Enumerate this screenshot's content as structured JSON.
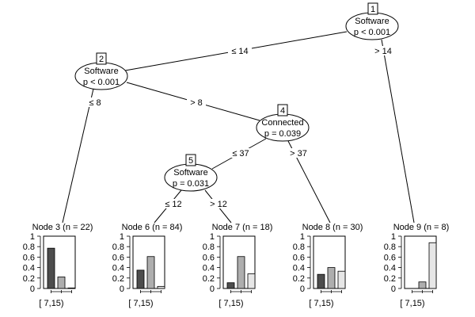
{
  "inner_nodes": [
    {
      "id": "1",
      "variable": "Software",
      "p": "p < 0.001"
    },
    {
      "id": "2",
      "variable": "Software",
      "p": "p < 0.001"
    },
    {
      "id": "4",
      "variable": "Connected",
      "p": "p = 0.039"
    },
    {
      "id": "5",
      "variable": "Software",
      "p": "p = 0.031"
    }
  ],
  "edges": [
    {
      "from": "1",
      "to": "2",
      "label": "≤ 14"
    },
    {
      "from": "1",
      "to": "9",
      "label": "> 14"
    },
    {
      "from": "2",
      "to": "3",
      "label": "≤ 8"
    },
    {
      "from": "2",
      "to": "4",
      "label": "> 8"
    },
    {
      "from": "4",
      "to": "5",
      "label": "≤ 37"
    },
    {
      "from": "4",
      "to": "8",
      "label": "> 37"
    },
    {
      "from": "5",
      "to": "6",
      "label": "≤ 12"
    },
    {
      "from": "5",
      "to": "7",
      "label": "> 12"
    }
  ],
  "y_ticks": [
    "0",
    "0.2",
    "0.4",
    "0.6",
    "0.8",
    "1"
  ],
  "bar_colors": [
    "#4d4d4d",
    "#aeaeae",
    "#e6e6e6"
  ],
  "terminal_nodes": [
    {
      "id": "3",
      "title": "Node 3 (n = 22)",
      "x_label": "[ 7,15)",
      "values": [
        0.77,
        0.22,
        0.01
      ]
    },
    {
      "id": "6",
      "title": "Node 6 (n = 84)",
      "x_label": "[ 7,15)",
      "values": [
        0.35,
        0.61,
        0.04
      ]
    },
    {
      "id": "7",
      "title": "Node 7 (n = 18)",
      "x_label": "[ 7,15)",
      "values": [
        0.11,
        0.61,
        0.28
      ]
    },
    {
      "id": "8",
      "title": "Node 8 (n = 30)",
      "x_label": "[ 7,15)",
      "values": [
        0.27,
        0.4,
        0.33
      ]
    },
    {
      "id": "9",
      "title": "Node 9 (n = 8)",
      "x_label": "[ 7,15)",
      "values": [
        0.0,
        0.125,
        0.875
      ]
    }
  ]
}
